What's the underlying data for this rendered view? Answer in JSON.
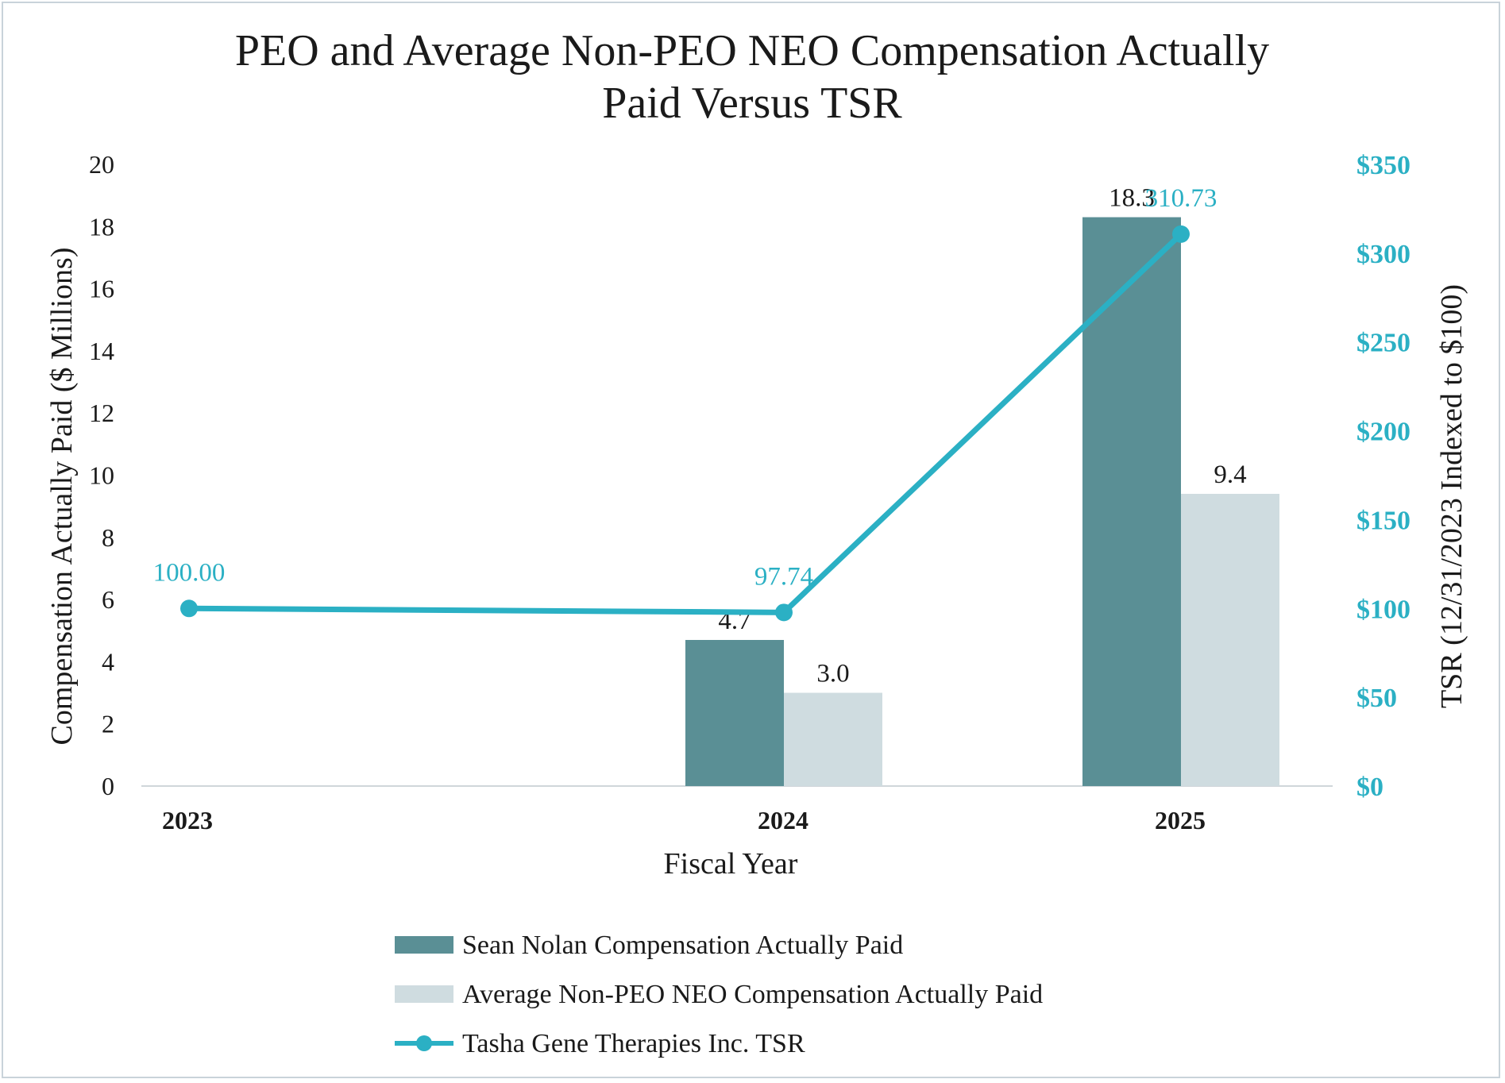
{
  "chart_data": {
    "type": "bar",
    "title": [
      "PEO and Average Non-PEO NEO Compensation Actually",
      "Paid Versus TSR"
    ],
    "xlabel": "Fiscal Year",
    "ylabel": "Compensation Actually Paid ($ Millions)",
    "y2label": "TSR (12/31/2023 Indexed to $100)",
    "categories": [
      "2023",
      "2024",
      "2025"
    ],
    "ylim": [
      0,
      20
    ],
    "yticks": [
      "0",
      "2",
      "4",
      "6",
      "8",
      "10",
      "12",
      "14",
      "16",
      "18",
      "20"
    ],
    "y2lim": [
      0,
      350
    ],
    "y2ticks": [
      "$0",
      "$50",
      "$100",
      "$150",
      "$200",
      "$250",
      "$300",
      "$350"
    ],
    "series": [
      {
        "name": "Sean Nolan Compensation Actually Paid",
        "type": "bar",
        "axis": "left",
        "color": "#5a8f95",
        "values": [
          null,
          4.7,
          18.3
        ],
        "labels": [
          "",
          "4.7",
          "18.3"
        ]
      },
      {
        "name": "Average Non-PEO NEO Compensation Actually Paid",
        "type": "bar",
        "axis": "left",
        "color": "#cfdce0",
        "values": [
          null,
          3.0,
          9.4
        ],
        "labels": [
          "",
          "3.0",
          "9.4"
        ]
      },
      {
        "name": "Tasha Gene Therapies Inc. TSR",
        "type": "line",
        "axis": "right",
        "color": "#2bb0c4",
        "values": [
          100.0,
          97.74,
          310.73
        ],
        "labels": [
          "100.00",
          "97.74",
          "310.73"
        ]
      }
    ],
    "legend_position": "bottom",
    "grid": false
  }
}
